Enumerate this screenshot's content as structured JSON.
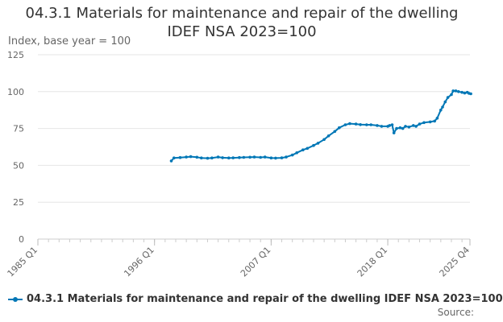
{
  "chart_data": {
    "type": "line",
    "title": "04.3.1 Materials for maintenance and repair of the dwelling",
    "subtitle": "IDEF NSA 2023=100",
    "ylabel": "Index, base year = 100",
    "ylim": [
      0,
      125
    ],
    "yticks": [
      "0",
      "25",
      "50",
      "75",
      "100",
      "125"
    ],
    "xticks": [
      "1985 Q1",
      "1996 Q1",
      "2007 Q1",
      "2018 Q1",
      "2025 Q4"
    ],
    "x_range": [
      "1985 Q1",
      "2025 Q4"
    ],
    "grid": true,
    "legend": "bottom-left",
    "series": [
      {
        "name": "04.3.1 Materials for maintenance and repair of the dwelling IDEF NSA 2023=100",
        "color": "#0077b6",
        "points": [
          [
            "1997-08",
            53.0
          ],
          [
            "1997-11",
            55.0
          ],
          [
            "1998-06",
            55.3
          ],
          [
            "1999-01",
            55.6
          ],
          [
            "1999-06",
            55.9
          ],
          [
            "2000-01",
            55.5
          ],
          [
            "2000-06",
            55.0
          ],
          [
            "2001-01",
            54.8
          ],
          [
            "2001-06",
            55.0
          ],
          [
            "2002-01",
            55.6
          ],
          [
            "2002-06",
            55.2
          ],
          [
            "2003-01",
            55.0
          ],
          [
            "2003-06",
            55.1
          ],
          [
            "2004-01",
            55.3
          ],
          [
            "2004-06",
            55.4
          ],
          [
            "2005-01",
            55.5
          ],
          [
            "2005-06",
            55.6
          ],
          [
            "2006-01",
            55.4
          ],
          [
            "2006-06",
            55.6
          ],
          [
            "2007-01",
            55.0
          ],
          [
            "2007-06",
            54.9
          ],
          [
            "2008-01",
            55.1
          ],
          [
            "2008-06",
            55.6
          ],
          [
            "2009-01",
            57.0
          ],
          [
            "2009-06",
            58.5
          ],
          [
            "2010-01",
            60.5
          ],
          [
            "2010-06",
            61.5
          ],
          [
            "2011-01",
            63.5
          ],
          [
            "2011-06",
            65.0
          ],
          [
            "2012-01",
            67.5
          ],
          [
            "2012-06",
            70.0
          ],
          [
            "2013-01",
            73.0
          ],
          [
            "2013-06",
            75.5
          ],
          [
            "2014-01",
            77.5
          ],
          [
            "2014-06",
            78.3
          ],
          [
            "2015-01",
            78.0
          ],
          [
            "2015-06",
            77.6
          ],
          [
            "2016-01",
            77.5
          ],
          [
            "2016-06",
            77.5
          ],
          [
            "2017-01",
            77.0
          ],
          [
            "2017-06",
            76.5
          ],
          [
            "2018-01",
            76.5
          ],
          [
            "2018-03",
            77.0
          ],
          [
            "2018-06",
            77.5
          ],
          [
            "2018-08",
            72.0
          ],
          [
            "2018-11",
            75.0
          ],
          [
            "2019-03",
            75.5
          ],
          [
            "2019-06",
            75.0
          ],
          [
            "2019-09",
            76.5
          ],
          [
            "2020-01",
            76.0
          ],
          [
            "2020-06",
            77.0
          ],
          [
            "2020-09",
            76.5
          ],
          [
            "2021-01",
            78.0
          ],
          [
            "2021-06",
            79.0
          ],
          [
            "2022-01",
            79.5
          ],
          [
            "2022-06",
            80.0
          ],
          [
            "2022-09",
            82.0
          ],
          [
            "2023-01",
            87.5
          ],
          [
            "2023-03",
            89.5
          ],
          [
            "2023-06",
            93.0
          ],
          [
            "2023-09",
            96.0
          ],
          [
            "2024-01",
            98.0
          ],
          [
            "2024-03",
            100.5
          ],
          [
            "2024-06",
            100.5
          ],
          [
            "2024-09",
            100.0
          ],
          [
            "2025-01",
            99.5
          ],
          [
            "2025-04",
            99.0
          ],
          [
            "2025-07",
            99.5
          ],
          [
            "2025-09",
            98.8
          ],
          [
            "2025-11",
            98.5
          ]
        ]
      }
    ]
  },
  "source": "Source:"
}
